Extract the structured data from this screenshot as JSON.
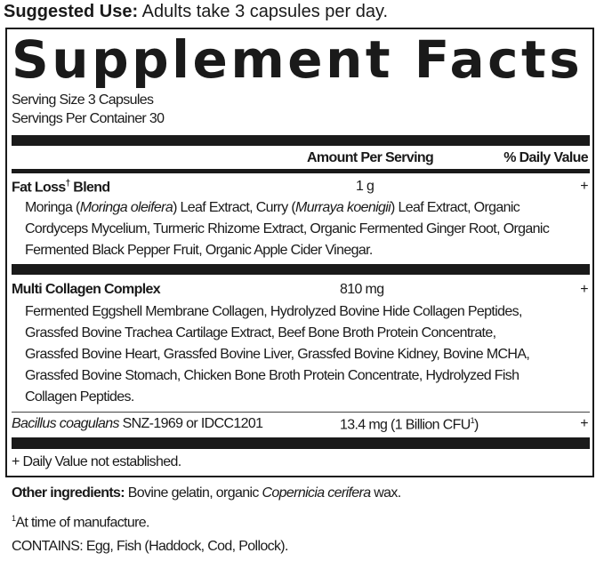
{
  "suggested_use": {
    "label": "Suggested Use:",
    "text": " Adults take 3 capsules per day."
  },
  "title": "Supplement Facts",
  "serving_size": "Serving Size 3 Capsules",
  "servings_per_container": "Servings Per Container 30",
  "header": {
    "amount": "Amount Per Serving",
    "dv": "% Daily Value"
  },
  "fat_loss": {
    "name": "Fat Loss",
    "dagger": "†",
    "name2": " Blend",
    "amount": "1 g",
    "dv": "+",
    "l1": [
      "Moringa (",
      "Moringa oleifera",
      ") Leaf Extract, Curry (",
      "Murraya koenigii",
      ") Leaf Extract, Organic"
    ],
    "l2": "Cordyceps Mycelium, Turmeric Rhizome Extract, Organic Fermented Ginger Root, Organic",
    "l3": "Fermented Black Pepper Fruit, Organic Apple Cider Vinegar."
  },
  "collagen": {
    "name": "Multi Collagen Complex",
    "amount": "810 mg",
    "dv": "+",
    "lines": [
      "Fermented Eggshell Membrane Collagen, Hydrolyzed Bovine Hide Collagen Peptides,",
      "Grassfed Bovine Trachea Cartilage Extract, Beef Bone Broth Protein Concentrate,",
      "Grassfed Bovine Heart, Grassfed Bovine Liver, Grassfed Bovine Kidney, Bovine MCHA,",
      "Grassfed Bovine Stomach, Chicken Bone Broth Protein Concentrate, Hydrolyzed Fish",
      "Collagen Peptides."
    ]
  },
  "bacillus": {
    "name": "Bacillus coagulans",
    "strain": " SNZ-1969 or IDCC1201",
    "amount": "13.4 mg (1 Billion CFU",
    "sup": "1",
    "close": ")",
    "dv": "+"
  },
  "dv_note": "+ Daily Value not established.",
  "other": {
    "label": "Other ingredients:",
    "t1": " Bovine gelatin, organic ",
    "italic": "Copernicia cerifera",
    "t2": " wax."
  },
  "footnote": {
    "sup": "1",
    "text": "At time of manufacture."
  },
  "contains": "CONTAINS: Egg, Fish (Haddock, Cod, Pollock)."
}
